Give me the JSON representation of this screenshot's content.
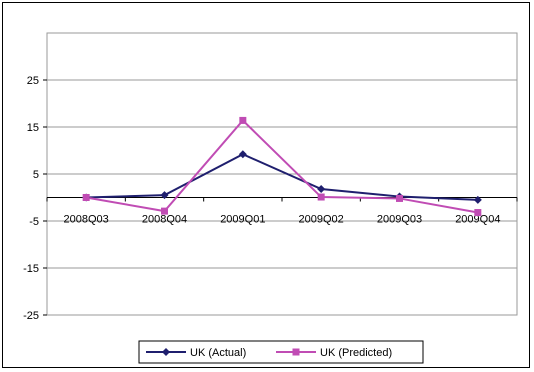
{
  "chart_data": {
    "type": "line",
    "title": "",
    "xlabel": "",
    "ylabel": "",
    "categories": [
      "2008Q03",
      "2008Q04",
      "2009Q01",
      "2009Q02",
      "2009Q03",
      "2009Q04"
    ],
    "ylim": [
      -25,
      35
    ],
    "y_ticks": [
      "25",
      "15",
      "5",
      "-5",
      "-15",
      "-25"
    ],
    "grid": "horizontal",
    "legend_position": "bottom",
    "series": [
      {
        "name": "UK  (Actual)",
        "color": "#1f1f6e",
        "marker": "diamond",
        "values": [
          0,
          0.5,
          9.2,
          1.8,
          0.2,
          -0.5
        ]
      },
      {
        "name": "UK  (Predicted)",
        "color": "#c04cb4",
        "marker": "square",
        "values": [
          0,
          -2.9,
          16.4,
          0.1,
          -0.2,
          -3.2
        ]
      }
    ]
  }
}
